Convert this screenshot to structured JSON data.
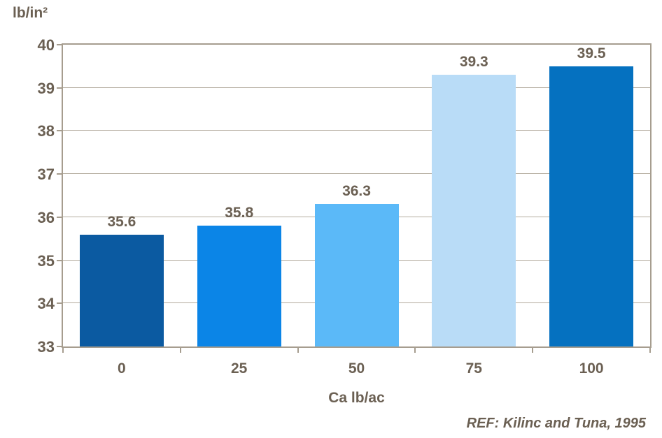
{
  "page": {
    "background": "#ffffff"
  },
  "chart_data": {
    "type": "bar",
    "title": "",
    "categories": [
      "0",
      "25",
      "50",
      "75",
      "100"
    ],
    "values": [
      35.6,
      35.8,
      36.3,
      39.3,
      39.5
    ],
    "value_labels": [
      "35.6",
      "35.8",
      "36.3",
      "39.3",
      "39.5"
    ],
    "bar_colors": [
      "#0b5aa1",
      "#0b85e7",
      "#5bb9f8",
      "#b9dcf7",
      "#0571c0"
    ],
    "xlabel": "Ca lb/ac",
    "ylabel": "lb/in²",
    "ylim": [
      33,
      40
    ],
    "yticks": [
      "40",
      "39",
      "38",
      "37",
      "36",
      "35",
      "34",
      "33"
    ],
    "grid": true,
    "legend": false
  },
  "footer": {
    "reference": "REF: Kilinc and Tuna, 1995"
  },
  "colors": {
    "axis_border": "#a69d8f",
    "gridline": "#b3ab9d",
    "text": "#6b6053"
  }
}
